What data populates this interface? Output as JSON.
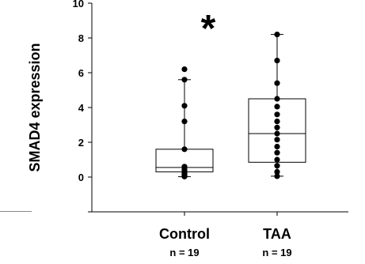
{
  "chart_data": {
    "type": "box",
    "ylabel": "SMAD4 expression",
    "ylim": [
      -2,
      10
    ],
    "yticks": [
      "10",
      "8",
      "6",
      "4",
      "2",
      "0"
    ],
    "categories": [
      "Control",
      "TAA"
    ],
    "sample_sizes": [
      "n = 19",
      "n = 19"
    ],
    "significance": "*",
    "boxes": [
      {
        "q1": 0.3,
        "median": 0.55,
        "q3": 1.6,
        "whisker_low": 0.02,
        "whisker_high": 5.6
      },
      {
        "q1": 0.85,
        "median": 2.5,
        "q3": 4.5,
        "whisker_low": 0.05,
        "whisker_high": 8.2
      }
    ],
    "points": [
      [
        6.2,
        5.6,
        4.1,
        3.2,
        1.6,
        0.6,
        0.45,
        0.35,
        0.25,
        0.2,
        0.15,
        0.1,
        0.08,
        0.05,
        0.03
      ],
      [
        8.2,
        6.7,
        5.4,
        4.5,
        4.05,
        3.6,
        3.2,
        2.85,
        2.5,
        2.15,
        1.75,
        1.4,
        1.0,
        0.65,
        0.3,
        0.05
      ]
    ]
  }
}
